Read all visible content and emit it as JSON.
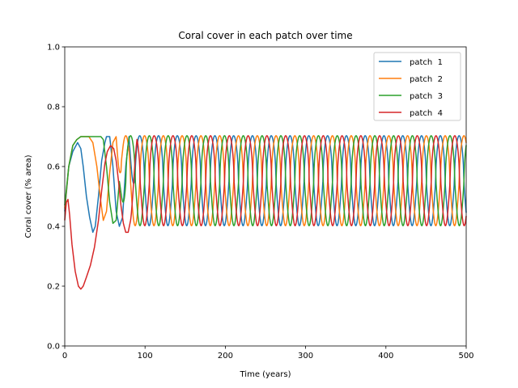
{
  "chart_data": {
    "type": "line",
    "title": "Coral cover in each patch over time",
    "xlabel": "Time (years)",
    "ylabel": "Coral cover (% area)",
    "xlim": [
      0,
      500
    ],
    "ylim": [
      0.0,
      1.0
    ],
    "xticks": [
      "0",
      "100",
      "200",
      "300",
      "400",
      "500"
    ],
    "xtick_values": [
      0,
      100,
      200,
      300,
      400,
      500
    ],
    "yticks": [
      "0.0",
      "0.2",
      "0.4",
      "0.6",
      "0.8",
      "1.0"
    ],
    "ytick_values": [
      0.0,
      0.2,
      0.4,
      0.6,
      0.8,
      1.0
    ],
    "grid": false,
    "legend_position": "top-right",
    "series": [
      {
        "name": "patch  1",
        "color": "#1f77b4",
        "x": [
          0,
          5,
          10,
          16,
          20,
          23,
          27,
          31,
          35,
          38,
          42,
          46,
          50,
          52,
          56,
          60,
          64,
          68,
          72,
          76,
          80
        ],
        "y": [
          0.45,
          0.6,
          0.65,
          0.68,
          0.66,
          0.6,
          0.5,
          0.43,
          0.38,
          0.4,
          0.5,
          0.62,
          0.68,
          0.7,
          0.7,
          0.6,
          0.45,
          0.4,
          0.43,
          0.6,
          0.7
        ],
        "period": 23.4,
        "phase": 70
      },
      {
        "name": "patch  2",
        "color": "#ff7f0e",
        "x": [
          0,
          5,
          10,
          15,
          20,
          25,
          30,
          35,
          40,
          45,
          48,
          52,
          56,
          60,
          64
        ],
        "y": [
          0.46,
          0.6,
          0.67,
          0.69,
          0.7,
          0.7,
          0.7,
          0.68,
          0.6,
          0.48,
          0.42,
          0.45,
          0.58,
          0.68,
          0.7
        ],
        "period": 23.4,
        "phase": 76
      },
      {
        "name": "patch  3",
        "color": "#2ca02c",
        "x": [
          0,
          5,
          10,
          15,
          20,
          25,
          30,
          35,
          40,
          45,
          48,
          52,
          56,
          60,
          64,
          68
        ],
        "y": [
          0.47,
          0.6,
          0.67,
          0.69,
          0.7,
          0.7,
          0.7,
          0.7,
          0.7,
          0.7,
          0.69,
          0.6,
          0.48,
          0.41,
          0.42,
          0.55
        ],
        "period": 23.4,
        "phase": 82
      },
      {
        "name": "patch  4",
        "color": "#d62728",
        "x": [
          0,
          2,
          4,
          6,
          9,
          13,
          17,
          20,
          23,
          27,
          32,
          37,
          42,
          46,
          50,
          53,
          57,
          61,
          64,
          67,
          70,
          73,
          76,
          79,
          82
        ],
        "y": [
          0.42,
          0.48,
          0.49,
          0.44,
          0.34,
          0.25,
          0.2,
          0.19,
          0.2,
          0.23,
          0.27,
          0.33,
          0.42,
          0.52,
          0.61,
          0.65,
          0.67,
          0.66,
          0.62,
          0.55,
          0.47,
          0.41,
          0.38,
          0.38,
          0.42
        ],
        "period": 23.4,
        "phase": 88
      }
    ],
    "steady_oscillation": {
      "start": 0,
      "end": 500,
      "min": 0.402,
      "max": 0.703
    }
  }
}
